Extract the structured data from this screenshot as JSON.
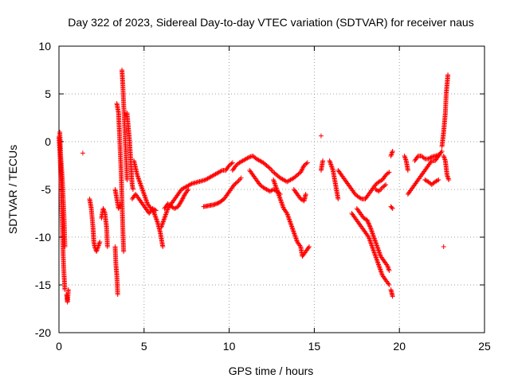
{
  "chart_data": {
    "type": "scatter",
    "title": "Day 322 of 2023, Sidereal Day-to-day VTEC variation (SDTVAR) for receiver naus",
    "xlabel": "GPS time / hours",
    "ylabel": "SDTVAR / TECUs",
    "xlim": [
      0,
      25
    ],
    "ylim": [
      -20,
      10
    ],
    "xticks": [
      0,
      5,
      10,
      15,
      20,
      25
    ],
    "yticks": [
      -20,
      -15,
      -10,
      -5,
      0,
      5,
      10
    ],
    "grid": true,
    "marker": "+",
    "color": "#ff0000",
    "series": [
      {
        "name": "SDTVAR",
        "segments": [
          [
            [
              0.0,
              0.5
            ],
            [
              0.05,
              -1
            ],
            [
              0.1,
              -3
            ],
            [
              0.15,
              -6
            ],
            [
              0.2,
              -9
            ],
            [
              0.25,
              -12
            ],
            [
              0.3,
              -14
            ],
            [
              0.35,
              -15.5
            ]
          ],
          [
            [
              0.05,
              1
            ],
            [
              0.1,
              -1.5
            ],
            [
              0.2,
              -4
            ],
            [
              0.3,
              -8
            ],
            [
              0.35,
              -11
            ]
          ],
          [
            [
              0.45,
              -16
            ],
            [
              0.5,
              -16.8
            ],
            [
              0.55,
              -15.5
            ]
          ],
          [
            [
              1.4,
              -1.2
            ]
          ],
          [
            [
              1.8,
              -6
            ],
            [
              1.9,
              -7
            ],
            [
              2.0,
              -9
            ],
            [
              2.05,
              -10.5
            ],
            [
              2.1,
              -11
            ],
            [
              2.2,
              -11.5
            ],
            [
              2.3,
              -11
            ],
            [
              2.4,
              -10.5
            ]
          ],
          [
            [
              2.5,
              -8
            ],
            [
              2.6,
              -7
            ],
            [
              2.7,
              -7.5
            ],
            [
              2.8,
              -9
            ],
            [
              2.85,
              -11
            ]
          ],
          [
            [
              3.3,
              -11
            ],
            [
              3.35,
              -13
            ],
            [
              3.4,
              -14
            ],
            [
              3.45,
              -16
            ]
          ],
          [
            [
              3.3,
              -5
            ],
            [
              3.4,
              -6
            ],
            [
              3.5,
              -7
            ],
            [
              3.6,
              -6.5
            ]
          ],
          [
            [
              3.4,
              4
            ],
            [
              3.5,
              3
            ],
            [
              3.55,
              1
            ],
            [
              3.6,
              -1
            ],
            [
              3.65,
              -3
            ],
            [
              3.7,
              -6
            ],
            [
              3.75,
              -9
            ],
            [
              3.8,
              -11.5
            ]
          ],
          [
            [
              3.7,
              7.5
            ],
            [
              3.75,
              6
            ],
            [
              3.8,
              4
            ],
            [
              3.85,
              2
            ],
            [
              3.9,
              0
            ],
            [
              3.95,
              -2
            ],
            [
              4.0,
              -4
            ]
          ],
          [
            [
              4.0,
              3
            ],
            [
              4.05,
              2
            ],
            [
              4.1,
              1
            ],
            [
              4.15,
              0
            ],
            [
              4.2,
              -1.5
            ],
            [
              4.25,
              -3
            ],
            [
              4.3,
              -4.5
            ],
            [
              4.35,
              -5
            ]
          ],
          [
            [
              4.3,
              -6
            ],
            [
              4.5,
              -5.5
            ],
            [
              4.7,
              -6
            ],
            [
              4.9,
              -6.5
            ],
            [
              5.1,
              -7
            ],
            [
              5.3,
              -7.5
            ],
            [
              5.5,
              -7
            ],
            [
              5.7,
              -7.2
            ]
          ],
          [
            [
              4.4,
              -2
            ],
            [
              4.6,
              -3.5
            ],
            [
              4.8,
              -4.5
            ],
            [
              5.0,
              -5.5
            ],
            [
              5.2,
              -6.5
            ],
            [
              5.4,
              -7
            ],
            [
              5.6,
              -7.5
            ],
            [
              5.8,
              -8.5
            ],
            [
              5.95,
              -9.5
            ],
            [
              6.05,
              -10.5
            ],
            [
              6.1,
              -11
            ]
          ],
          [
            [
              6.0,
              -9
            ],
            [
              6.2,
              -8
            ],
            [
              6.4,
              -7
            ],
            [
              6.6,
              -6.5
            ],
            [
              6.8,
              -6
            ],
            [
              7.0,
              -5.5
            ],
            [
              7.2,
              -5
            ],
            [
              7.4,
              -4.8
            ],
            [
              7.6,
              -4.6
            ],
            [
              7.8,
              -4.4
            ],
            [
              8.0,
              -4.3
            ],
            [
              8.2,
              -4.2
            ],
            [
              8.4,
              -4.1
            ],
            [
              8.6,
              -4.0
            ],
            [
              8.8,
              -3.8
            ],
            [
              9.0,
              -3.6
            ],
            [
              9.2,
              -3.4
            ],
            [
              9.4,
              -3.2
            ],
            [
              9.6,
              -3.0
            ],
            [
              9.8,
              -3.0
            ],
            [
              10.0,
              -2.5
            ],
            [
              10.2,
              -2.2
            ]
          ],
          [
            [
              6.2,
              -7
            ],
            [
              6.4,
              -6.5
            ],
            [
              6.6,
              -6.8
            ],
            [
              6.8,
              -7.0
            ],
            [
              7.0,
              -6.8
            ],
            [
              7.2,
              -6.2
            ],
            [
              7.4,
              -5.5
            ],
            [
              7.6,
              -5.0
            ]
          ],
          [
            [
              8.5,
              -6.8
            ],
            [
              8.8,
              -6.7
            ],
            [
              9.1,
              -6.6
            ],
            [
              9.4,
              -6.4
            ],
            [
              9.7,
              -6.0
            ],
            [
              9.9,
              -5.5
            ],
            [
              10.1,
              -5.0
            ],
            [
              10.3,
              -4.5
            ],
            [
              10.5,
              -4.2
            ],
            [
              10.7,
              -3.8
            ]
          ],
          [
            [
              10.2,
              -3
            ],
            [
              10.4,
              -2.5
            ],
            [
              10.6,
              -2.2
            ],
            [
              10.8,
              -2.0
            ],
            [
              11.0,
              -1.8
            ],
            [
              11.2,
              -1.6
            ],
            [
              11.4,
              -1.5
            ],
            [
              11.6,
              -1.8
            ],
            [
              11.8,
              -2.0
            ],
            [
              12.0,
              -2.2
            ],
            [
              12.2,
              -2.5
            ],
            [
              12.4,
              -2.8
            ],
            [
              12.6,
              -3.2
            ],
            [
              12.8,
              -3.5
            ],
            [
              13.0,
              -3.8
            ],
            [
              13.2,
              -4.0
            ],
            [
              13.4,
              -4.2
            ],
            [
              13.6,
              -4.0
            ],
            [
              13.8,
              -3.8
            ],
            [
              14.0,
              -3.5
            ],
            [
              14.2,
              -3.2
            ],
            [
              14.4,
              -2.5
            ],
            [
              14.6,
              -2.2
            ]
          ],
          [
            [
              11.2,
              -3.0
            ],
            [
              11.4,
              -3.5
            ],
            [
              11.6,
              -4.0
            ],
            [
              11.8,
              -4.5
            ],
            [
              12.0,
              -4.8
            ],
            [
              12.2,
              -5.0
            ],
            [
              12.4,
              -5.2
            ],
            [
              12.6,
              -5.0
            ],
            [
              12.8,
              -5.2
            ],
            [
              13.0,
              -5.5
            ]
          ],
          [
            [
              12.6,
              -4.0
            ],
            [
              12.8,
              -5.0
            ],
            [
              13.0,
              -6.0
            ],
            [
              13.2,
              -7.0
            ],
            [
              13.4,
              -7.5
            ],
            [
              13.6,
              -8.5
            ],
            [
              13.8,
              -9.5
            ],
            [
              14.0,
              -10.5
            ],
            [
              14.2,
              -11.0
            ],
            [
              14.3,
              -12.0
            ],
            [
              14.5,
              -11.5
            ],
            [
              14.7,
              -11.0
            ]
          ],
          [
            [
              13.8,
              -5
            ],
            [
              14.0,
              -5.5
            ],
            [
              14.2,
              -6.0
            ],
            [
              14.4,
              -6.2
            ],
            [
              14.5,
              -5.5
            ]
          ],
          [
            [
              15.4,
              0.6
            ]
          ],
          [
            [
              15.4,
              -3.0
            ],
            [
              15.5,
              -2.0
            ]
          ],
          [
            [
              15.9,
              -2
            ],
            [
              16.0,
              -2.5
            ],
            [
              16.1,
              -3
            ],
            [
              16.2,
              -4
            ],
            [
              16.3,
              -5
            ],
            [
              16.4,
              -6
            ]
          ],
          [
            [
              16.4,
              -3
            ],
            [
              16.6,
              -3.5
            ],
            [
              16.8,
              -4.0
            ],
            [
              17.0,
              -4.5
            ],
            [
              17.2,
              -5.0
            ],
            [
              17.4,
              -5.5
            ],
            [
              17.6,
              -5.8
            ],
            [
              17.8,
              -6.0
            ],
            [
              18.0,
              -6.0
            ],
            [
              18.2,
              -5.5
            ],
            [
              18.4,
              -5.0
            ],
            [
              18.6,
              -4.5
            ],
            [
              18.8,
              -4.2
            ],
            [
              19.0,
              -4.0
            ],
            [
              19.2,
              -3.5
            ],
            [
              19.4,
              -3.2
            ]
          ],
          [
            [
              17.2,
              -7.5
            ],
            [
              17.4,
              -8.0
            ],
            [
              17.6,
              -8.5
            ],
            [
              17.8,
              -9.0
            ],
            [
              18.0,
              -9.5
            ],
            [
              18.2,
              -10.0
            ],
            [
              18.4,
              -11.0
            ],
            [
              18.6,
              -12.0
            ],
            [
              18.8,
              -13.0
            ],
            [
              19.0,
              -14.0
            ],
            [
              19.2,
              -14.5
            ],
            [
              19.4,
              -15.0
            ]
          ],
          [
            [
              17.5,
              -7.0
            ],
            [
              17.7,
              -7.5
            ],
            [
              17.9,
              -8.0
            ],
            [
              18.1,
              -8.2
            ],
            [
              18.3,
              -9.0
            ],
            [
              18.5,
              -10.0
            ],
            [
              18.7,
              -11.0
            ],
            [
              18.9,
              -12.0
            ],
            [
              19.1,
              -12.5
            ],
            [
              19.3,
              -13.0
            ],
            [
              19.4,
              -13.5
            ]
          ],
          [
            [
              18.6,
              -5.0
            ],
            [
              18.8,
              -5.2
            ],
            [
              19.0,
              -4.8
            ],
            [
              19.2,
              -4.5
            ]
          ],
          [
            [
              19.5,
              -1.5
            ],
            [
              19.6,
              -1.0
            ]
          ],
          [
            [
              19.5,
              -6.8
            ],
            [
              19.6,
              -7.0
            ]
          ],
          [
            [
              19.5,
              -15.5
            ],
            [
              19.6,
              -16.2
            ]
          ],
          [
            [
              20.3,
              -1.5
            ],
            [
              20.4,
              -2.0
            ],
            [
              20.5,
              -3.0
            ]
          ],
          [
            [
              20.5,
              -5.5
            ],
            [
              20.7,
              -5.0
            ],
            [
              20.9,
              -4.5
            ],
            [
              21.1,
              -4.0
            ],
            [
              21.3,
              -3.5
            ],
            [
              21.5,
              -3.0
            ],
            [
              21.7,
              -2.5
            ],
            [
              21.9,
              -2.0
            ],
            [
              22.1,
              -2.0
            ],
            [
              22.3,
              -1.5
            ],
            [
              22.5,
              -1.0
            ]
          ],
          [
            [
              20.9,
              -2.0
            ],
            [
              21.1,
              -1.5
            ],
            [
              21.3,
              -1.5
            ],
            [
              21.5,
              -1.8
            ],
            [
              21.7,
              -1.8
            ],
            [
              21.9,
              -1.6
            ],
            [
              22.1,
              -1.5
            ],
            [
              22.3,
              -1.4
            ]
          ],
          [
            [
              21.5,
              -4.0
            ],
            [
              21.7,
              -4.2
            ],
            [
              21.9,
              -4.5
            ],
            [
              22.1,
              -4.2
            ],
            [
              22.3,
              -4.0
            ]
          ],
          [
            [
              22.5,
              -0.5
            ],
            [
              22.6,
              1.0
            ],
            [
              22.7,
              3.0
            ],
            [
              22.75,
              5.0
            ],
            [
              22.8,
              6.0
            ],
            [
              22.85,
              7.0
            ]
          ],
          [
            [
              22.6,
              -1.5
            ],
            [
              22.7,
              -2.0
            ],
            [
              22.8,
              -3.5
            ],
            [
              22.9,
              -4.0
            ]
          ],
          [
            [
              22.6,
              -11.0
            ]
          ]
        ]
      }
    ]
  }
}
